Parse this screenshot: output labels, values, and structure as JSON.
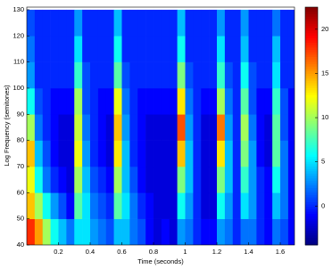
{
  "chart_data": {
    "type": "heatmap",
    "xlabel": "Time (seconds)",
    "ylabel": "Log Frequency (semitones)",
    "xbins": [
      0,
      0.05,
      0.1,
      0.15,
      0.2,
      0.25,
      0.3,
      0.35,
      0.4,
      0.45,
      0.5,
      0.55,
      0.6,
      0.65,
      0.7,
      0.75,
      0.8,
      0.85,
      0.9,
      0.95,
      1,
      1.05,
      1.1,
      1.15,
      1.2,
      1.25,
      1.3,
      1.35,
      1.4,
      1.45,
      1.5,
      1.55,
      1.6,
      1.65,
      1.7
    ],
    "ybins": [
      40,
      50,
      60,
      70,
      80,
      90,
      100,
      110,
      120,
      130
    ],
    "values": [
      [
        18,
        15,
        10,
        6,
        4,
        2,
        5,
        5,
        3,
        2,
        1,
        4,
        4,
        2,
        1,
        -1,
        -2,
        -1,
        -2,
        3,
        2,
        0,
        -1,
        -1,
        3,
        2,
        0,
        2,
        2,
        0,
        -1,
        2,
        1,
        -1
      ],
      [
        14,
        10,
        6,
        3,
        1,
        -1,
        8,
        5,
        2,
        1,
        0,
        8,
        5,
        2,
        0,
        -1,
        -2,
        -2,
        -2,
        6,
        3,
        0,
        -2,
        -2,
        6,
        3,
        0,
        5,
        3,
        0,
        -1,
        4,
        2,
        -1
      ],
      [
        12,
        6,
        2,
        0,
        -1,
        -2,
        10,
        4,
        1,
        0,
        -1,
        10,
        4,
        1,
        -1,
        -2,
        -2,
        -2,
        -2,
        9,
        4,
        0,
        -2,
        -2,
        9,
        4,
        0,
        7,
        3,
        0,
        -1,
        6,
        2,
        -1
      ],
      [
        14,
        4,
        1,
        -1,
        -2,
        -2,
        12,
        3,
        0,
        -1,
        -2,
        13,
        4,
        0,
        -1,
        -2,
        -2,
        -2,
        -2,
        14,
        4,
        0,
        -2,
        -2,
        13,
        4,
        0,
        9,
        3,
        -1,
        -2,
        8,
        2,
        -1
      ],
      [
        10,
        2,
        0,
        -1,
        -2,
        -2,
        11,
        2,
        0,
        -1,
        -2,
        14,
        3,
        0,
        -1,
        -2,
        -2,
        -2,
        -2,
        17,
        3,
        0,
        -2,
        -2,
        16,
        3,
        0,
        10,
        2,
        -1,
        -2,
        8,
        1,
        -1
      ],
      [
        6,
        1,
        0,
        -1,
        -1,
        -1,
        10,
        1,
        0,
        -1,
        -1,
        12,
        2,
        0,
        -1,
        -1,
        -1,
        -1,
        -1,
        13,
        2,
        0,
        -1,
        -1,
        10,
        2,
        0,
        8,
        1,
        -1,
        -1,
        7,
        1,
        -1
      ],
      [
        3,
        0,
        0,
        0,
        0,
        0,
        7,
        1,
        0,
        0,
        0,
        8,
        1,
        0,
        0,
        0,
        0,
        0,
        0,
        9,
        1,
        0,
        0,
        0,
        7,
        1,
        0,
        6,
        1,
        0,
        0,
        5,
        0,
        0
      ],
      [
        2,
        0,
        0,
        0,
        0,
        0,
        5,
        0,
        0,
        0,
        0,
        6,
        0,
        0,
        0,
        0,
        0,
        0,
        0,
        6,
        0,
        0,
        0,
        0,
        5,
        0,
        0,
        4,
        0,
        0,
        0,
        4,
        0,
        0
      ],
      [
        1,
        0,
        0,
        0,
        0,
        0,
        3,
        0,
        0,
        0,
        0,
        4,
        0,
        0,
        0,
        0,
        0,
        0,
        0,
        4,
        0,
        0,
        0,
        0,
        3,
        0,
        0,
        3,
        0,
        0,
        0,
        2,
        0,
        0
      ]
    ],
    "xlim": [
      0,
      1.69
    ],
    "xticks": [
      0.2,
      0.4,
      0.6,
      0.8,
      1,
      1.2,
      1.4,
      1.6
    ],
    "ylim": [
      40,
      131
    ],
    "yticks": [
      40,
      50,
      60,
      70,
      80,
      90,
      100,
      110,
      120,
      130
    ],
    "colormap": "jet",
    "clim": [
      -4.4,
      22.5
    ],
    "cticks": [
      0,
      5,
      10,
      15,
      20
    ]
  }
}
